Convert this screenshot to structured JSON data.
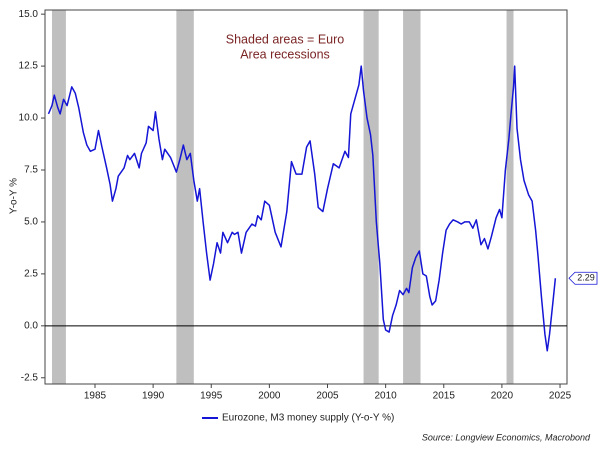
{
  "chart_data": {
    "type": "line",
    "annotation": [
      "Shaded areas = Euro",
      "Area recessions"
    ],
    "y_label": "Y-o-Y %",
    "source": "Source: Longview Economics, Macrobond",
    "x": [
      1981.0,
      1981.3,
      1981.5,
      1981.8,
      1982.0,
      1982.3,
      1982.6,
      1983.0,
      1983.3,
      1983.6,
      1984.0,
      1984.3,
      1984.6,
      1985.0,
      1985.3,
      1985.6,
      1986.0,
      1986.3,
      1986.5,
      1986.8,
      1987.0,
      1987.5,
      1987.8,
      1988.0,
      1988.4,
      1988.8,
      1989.0,
      1989.4,
      1989.6,
      1990.0,
      1990.2,
      1990.5,
      1990.8,
      1991.0,
      1991.5,
      1992.0,
      1992.3,
      1992.6,
      1992.9,
      1993.2,
      1993.5,
      1993.8,
      1994.0,
      1994.3,
      1994.6,
      1994.9,
      1995.2,
      1995.5,
      1995.8,
      1996.0,
      1996.4,
      1996.8,
      1997.0,
      1997.3,
      1997.6,
      1998.0,
      1998.5,
      1998.8,
      1999.0,
      1999.3,
      1999.6,
      2000.0,
      2000.5,
      2001.0,
      2001.5,
      2001.9,
      2002.3,
      2002.8,
      2003.2,
      2003.5,
      2003.9,
      2004.2,
      2004.6,
      2005.0,
      2005.5,
      2006.0,
      2006.5,
      2006.8,
      2007.0,
      2007.4,
      2007.7,
      2007.9,
      2008.1,
      2008.4,
      2008.7,
      2008.9,
      2009.2,
      2009.5,
      2009.8,
      2010.0,
      2010.3,
      2010.6,
      2010.9,
      2011.2,
      2011.5,
      2011.8,
      2012.0,
      2012.3,
      2012.6,
      2012.9,
      2013.2,
      2013.5,
      2013.8,
      2014.0,
      2014.3,
      2014.6,
      2014.9,
      2015.2,
      2015.5,
      2015.8,
      2016.2,
      2016.5,
      2016.8,
      2017.2,
      2017.5,
      2017.8,
      2018.2,
      2018.5,
      2018.8,
      2019.1,
      2019.5,
      2019.8,
      2020.0,
      2020.3,
      2020.6,
      2020.8,
      2021.0,
      2021.1,
      2021.3,
      2021.6,
      2021.9,
      2022.3,
      2022.6,
      2022.9,
      2023.1,
      2023.4,
      2023.7,
      2023.9,
      2024.1,
      2024.4,
      2024.6
    ],
    "series": [
      {
        "name": "Eurozone, M3 money supply (Y-o-Y %)",
        "color": "#1515d6",
        "values": [
          10.2,
          10.6,
          11.1,
          10.5,
          10.2,
          10.9,
          10.6,
          11.5,
          11.2,
          10.5,
          9.3,
          8.7,
          8.4,
          8.5,
          9.4,
          8.6,
          7.6,
          6.8,
          6.0,
          6.6,
          7.2,
          7.6,
          8.2,
          8.0,
          8.3,
          7.6,
          8.3,
          8.8,
          9.6,
          9.4,
          10.3,
          9.0,
          8.0,
          8.5,
          8.1,
          7.4,
          8.0,
          8.7,
          8.0,
          8.3,
          7.0,
          6.0,
          6.6,
          5.0,
          3.5,
          2.2,
          3.0,
          4.0,
          3.5,
          4.5,
          4.0,
          4.5,
          4.4,
          4.5,
          3.5,
          4.5,
          4.9,
          4.8,
          5.3,
          5.1,
          6.0,
          5.8,
          4.5,
          3.8,
          5.5,
          7.9,
          7.3,
          7.3,
          8.6,
          8.9,
          7.3,
          5.7,
          5.5,
          6.6,
          7.8,
          7.6,
          8.4,
          8.1,
          10.2,
          11.0,
          11.6,
          12.5,
          11.3,
          10.0,
          9.2,
          8.2,
          5.0,
          3.0,
          0.3,
          -0.2,
          -0.3,
          0.5,
          1.0,
          1.7,
          1.5,
          1.8,
          1.6,
          2.8,
          3.3,
          3.6,
          2.5,
          2.4,
          1.4,
          1.0,
          1.2,
          2.2,
          3.5,
          4.6,
          4.9,
          5.1,
          5.0,
          4.9,
          5.0,
          5.0,
          4.7,
          5.1,
          3.9,
          4.2,
          3.7,
          4.3,
          5.2,
          5.6,
          5.2,
          7.5,
          9.0,
          10.3,
          11.5,
          12.5,
          9.5,
          8.0,
          7.0,
          6.3,
          6.0,
          4.6,
          3.4,
          1.4,
          -0.4,
          -1.2,
          -0.4,
          1.2,
          2.29
        ]
      }
    ],
    "recessions": [
      [
        1981.3,
        1982.5
      ],
      [
        1992.0,
        1993.5
      ],
      [
        2008.1,
        2009.4
      ],
      [
        2011.5,
        2013.0
      ],
      [
        2020.4,
        2021.0
      ]
    ],
    "recession_color": "#bfbfbf",
    "hline": 0,
    "xlim": [
      1980.7,
      2025.6
    ],
    "ylim": [
      -2.8,
      15.2
    ],
    "xticks": [
      1985,
      1990,
      1995,
      2000,
      2005,
      2010,
      2015,
      2020,
      2025
    ],
    "yticks": [
      -2.5,
      {
        "value": 0,
        "label": "0.0"
      },
      2.5,
      {
        "value": 5,
        "label": "5.0"
      },
      7.5,
      {
        "value": 10,
        "label": "10.0"
      },
      12.5,
      {
        "value": 15,
        "label": "15.0"
      }
    ],
    "grid": false
  }
}
